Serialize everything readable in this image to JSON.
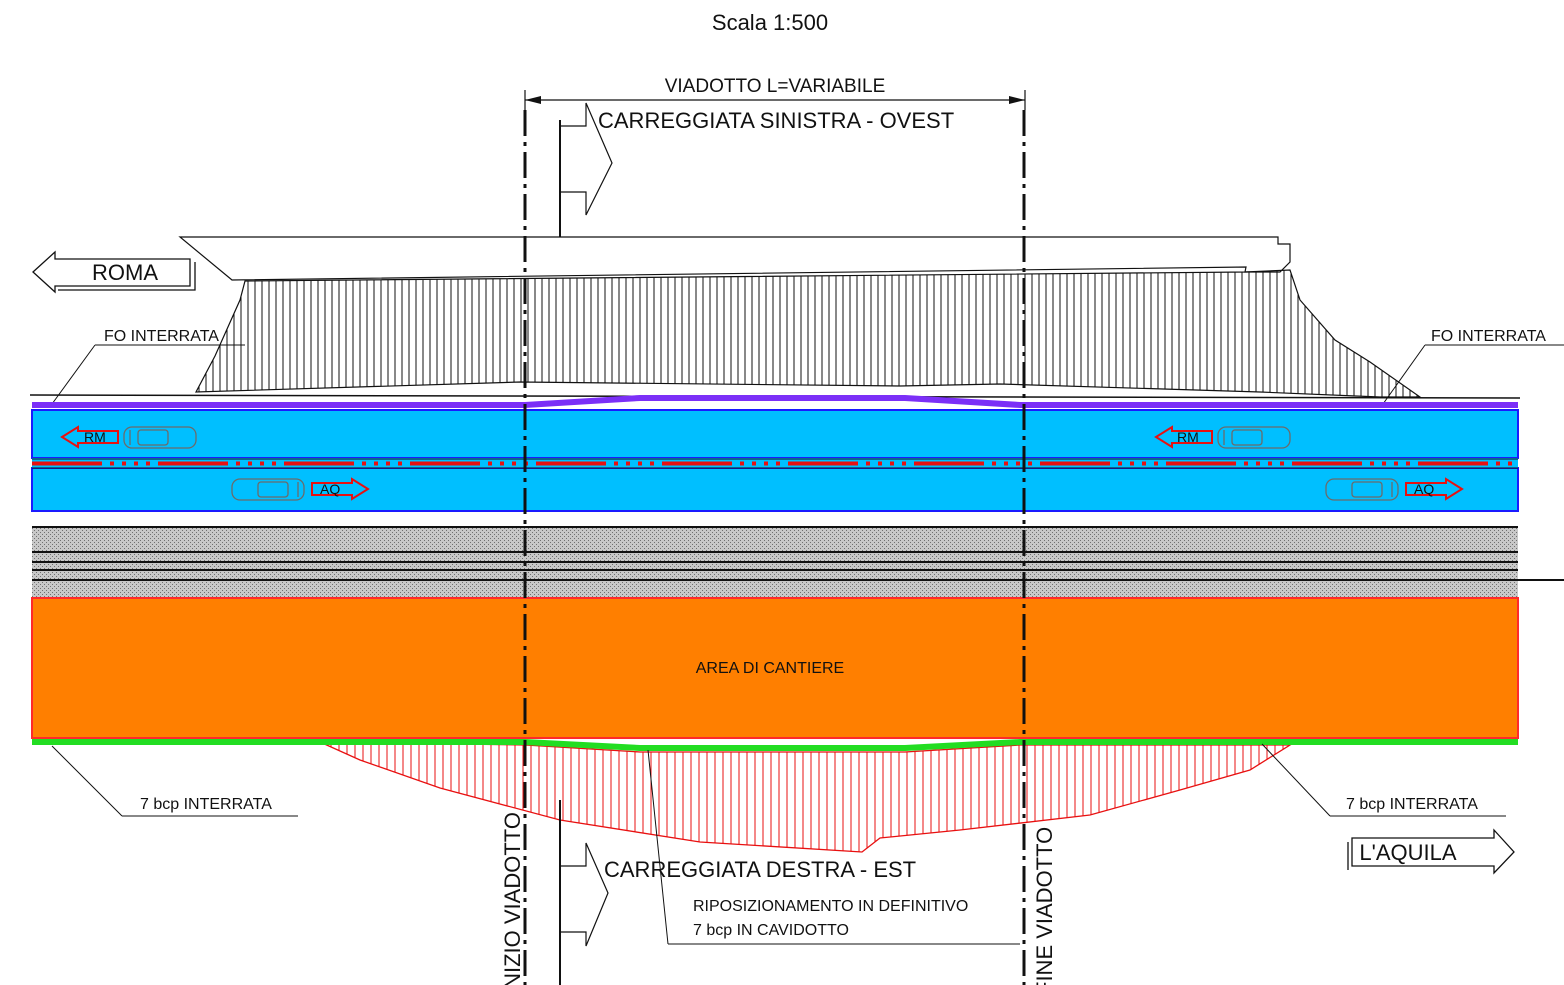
{
  "drawing": {
    "scale_label": "Scala 1:500",
    "viaduct_dimension_label": "VIADOTTO L=VARIABILE",
    "carriageway_left_label": "CARREGGIATA SINISTRA - OVEST",
    "carriageway_right_label": "CARREGGIATA DESTRA - EST",
    "destination_left": "ROMA",
    "destination_right": "L'AQUILA",
    "fiber_label_left": "FO INTERRATA",
    "fiber_label_right": "FO INTERRATA",
    "cable_label_left": "7 bcp INTERRATA",
    "cable_label_right": "7 bcp INTERRATA",
    "worksite_label": "AREA DI CANTIERE",
    "relocation_note_line1": "RIPOSIZIONAMENTO IN DEFINITIVO",
    "relocation_note_line2": "7 bcp IN CAVIDOTTO",
    "viaduct_start_label": "INIZIO VIADOTTO",
    "viaduct_end_label": "FINE VIADOTTO",
    "lane_tags": {
      "towards_rome": "RM",
      "towards_aquila": "AQ"
    }
  },
  "colors": {
    "lane_fill": "#00BFFF",
    "lane_border": "#1a1aff",
    "worksite_fill": "#FF7F00",
    "worksite_border": "#ff2a2a",
    "fiber_line": "#7B2FF7",
    "cable_line": "#22DD22",
    "hatch_red": "#e81010",
    "median_red": "#e81010",
    "gravel": "#b8b8b8",
    "ink": "#111111"
  }
}
